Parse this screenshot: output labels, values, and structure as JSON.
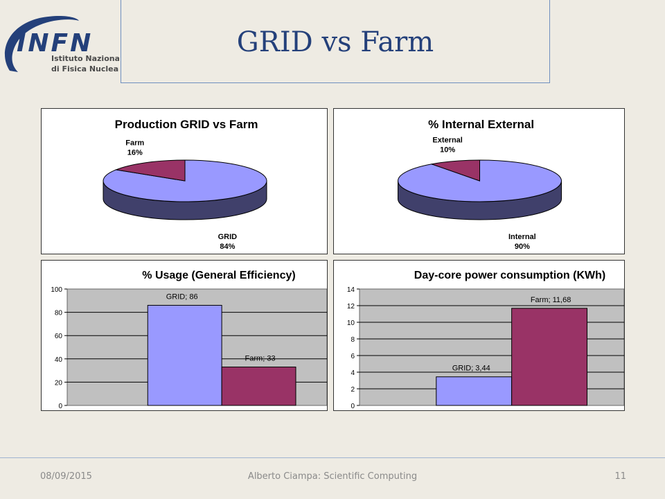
{
  "slide": {
    "title": "GRID vs Farm",
    "footer_date": "08/09/2015",
    "footer_author": "Alberto Ciampa: Scientific Computing",
    "page_number": "11"
  },
  "logo": {
    "name": "INFN",
    "line1": "Istituto Nazionale",
    "line2": "di Fisica Nucleare",
    "color": "#24407a"
  },
  "colors": {
    "series1": "#9999ff",
    "series2": "#993366",
    "plot_bg": "#c0c0c0"
  },
  "chart_data": [
    {
      "type": "pie",
      "title": "Production GRID vs Farm",
      "slices": [
        {
          "label": "GRID",
          "value": 84,
          "value_label": "84%",
          "color": "#9999ff"
        },
        {
          "label": "Farm",
          "value": 16,
          "value_label": "16%",
          "color": "#993366"
        }
      ]
    },
    {
      "type": "pie",
      "title": "% Internal External",
      "slices": [
        {
          "label": "Internal",
          "value": 90,
          "value_label": "90%",
          "color": "#9999ff"
        },
        {
          "label": "External",
          "value": 10,
          "value_label": "10%",
          "color": "#993366"
        }
      ]
    },
    {
      "type": "bar",
      "title": "% Usage (General Efficiency)",
      "categories": [
        "GRID",
        "Farm"
      ],
      "values": [
        86,
        33
      ],
      "data_labels": [
        "GRID; 86",
        "Farm; 33"
      ],
      "colors": [
        "#9999ff",
        "#993366"
      ],
      "ylim": [
        0,
        100
      ],
      "yticks": [
        0,
        20,
        40,
        60,
        80,
        100
      ],
      "ytick_labels": [
        "0",
        "20",
        "40",
        "60",
        "80",
        "100"
      ],
      "grid": true
    },
    {
      "type": "bar",
      "title": "Day-core power consumption (KWh)",
      "categories": [
        "GRID",
        "Farm"
      ],
      "values": [
        3.44,
        11.68
      ],
      "data_labels": [
        "GRID; 3,44",
        "Farm; 11,68"
      ],
      "colors": [
        "#9999ff",
        "#993366"
      ],
      "ylim": [
        0,
        14
      ],
      "yticks": [
        0,
        2,
        4,
        6,
        8,
        10,
        12,
        14
      ],
      "ytick_labels": [
        "0",
        "2",
        "4",
        "6",
        "8",
        "10",
        "12",
        "14"
      ],
      "grid": true
    }
  ]
}
